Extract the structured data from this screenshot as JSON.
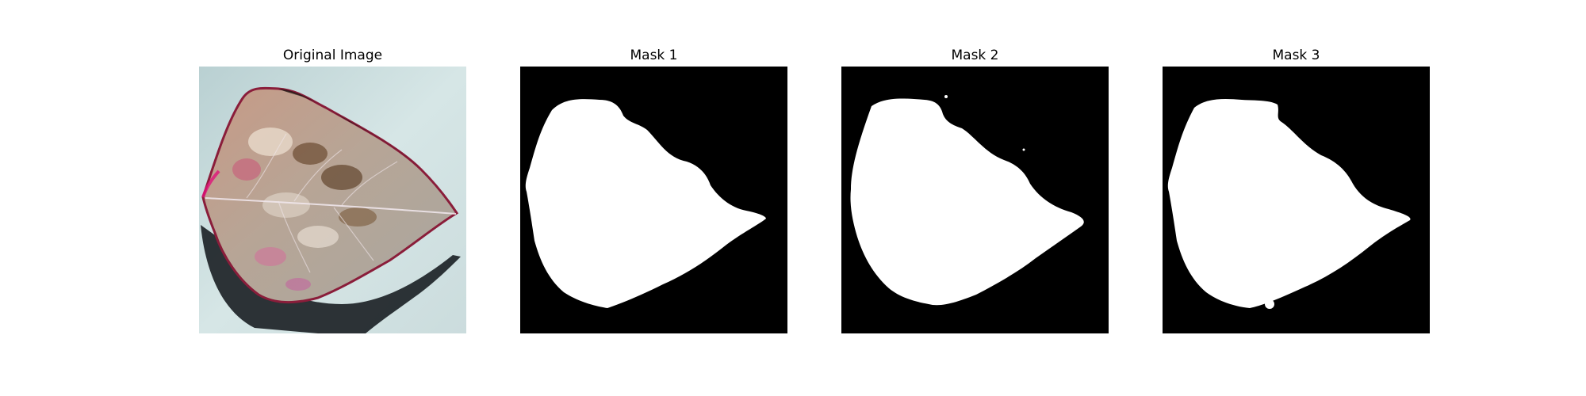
{
  "panels": [
    {
      "title": "Original Image"
    },
    {
      "title": "Mask 1"
    },
    {
      "title": "Mask 2"
    },
    {
      "title": "Mask 3"
    }
  ],
  "colors": {
    "mask_background": "#000000",
    "mask_foreground": "#ffffff",
    "photo_background": "#c9dcdc",
    "leaf_base": "#b8a99c",
    "leaf_edge": "#8a1d3a",
    "leaf_shadow": "#1a2024"
  }
}
